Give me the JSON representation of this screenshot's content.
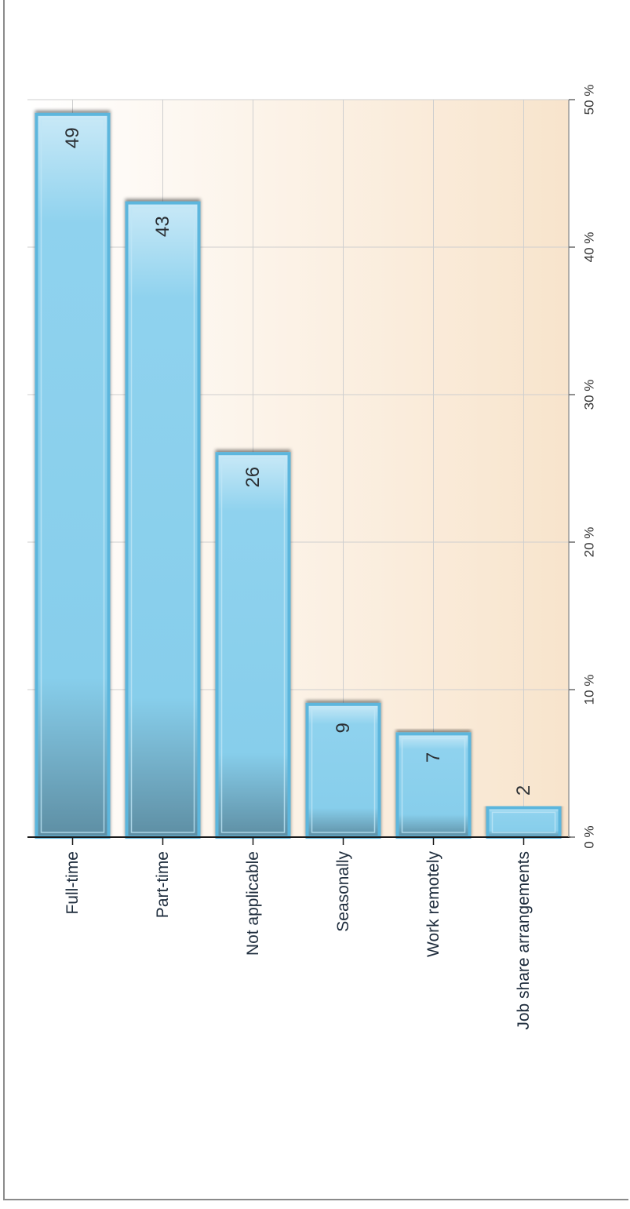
{
  "chart_data": {
    "type": "bar",
    "orientation": "horizontal",
    "categories": [
      "Full-time",
      "Part-time",
      "Not applicable",
      "Seasonally",
      "Work remotely",
      "Job share arrangements"
    ],
    "values": [
      49,
      43,
      26,
      9,
      7,
      2
    ],
    "value_labels": [
      "49",
      "43",
      "26",
      "9",
      "7",
      "2"
    ],
    "ticks": [
      "0 %",
      "10 %",
      "20 %",
      "30 %",
      "40 %",
      "50 %"
    ],
    "xlim": [
      0,
      50
    ],
    "grid": true,
    "colors": {
      "bar": "#87ceeb",
      "bar_dark": "#5e8ea3",
      "bar_border": "#5bb6dd",
      "plot_bg_start": "#ffffff",
      "plot_bg_end": "#f8e4cc",
      "grid": "#cfcfcf"
    }
  }
}
